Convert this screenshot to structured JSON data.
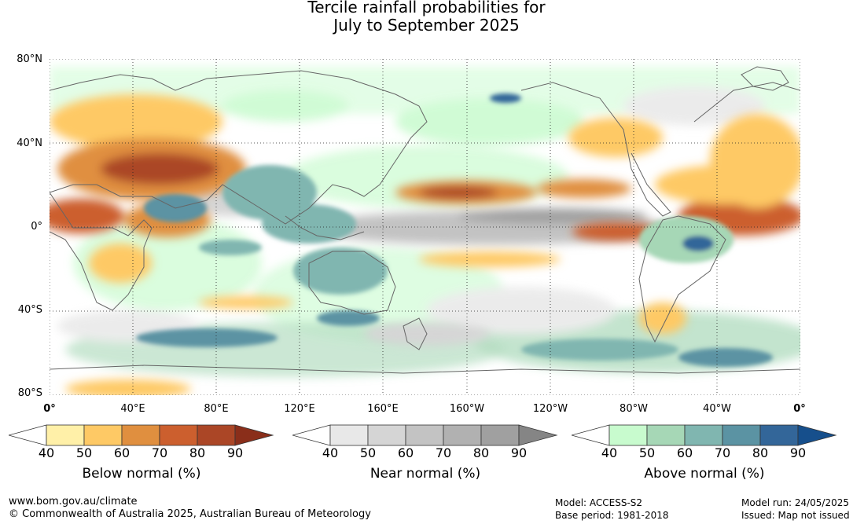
{
  "title_line1": "Tercile rainfall probabilities for",
  "title_line2": "July to September 2025",
  "lat_labels": [
    "80°N",
    "40°N",
    "0°",
    "40°S",
    "80°S"
  ],
  "lon_labels": [
    "0°",
    "40°E",
    "80°E",
    "120°E",
    "160°E",
    "160°W",
    "120°W",
    "80°W",
    "40°W",
    "0°"
  ],
  "colorbars": [
    {
      "label": "Below normal (%)",
      "ticks": [
        "40",
        "50",
        "60",
        "70",
        "80",
        "90"
      ],
      "colors": [
        "#fff0a8",
        "#fec965",
        "#e08f3f",
        "#cc5f2e",
        "#ab4626",
        "#8a2e1a"
      ]
    },
    {
      "label": "Near normal (%)",
      "ticks": [
        "40",
        "50",
        "60",
        "70",
        "80",
        "90"
      ],
      "colors": [
        "#e8e8e8",
        "#d5d5d5",
        "#c3c3c3",
        "#b1b1b1",
        "#a0a0a0",
        "#858585"
      ]
    },
    {
      "label": "Above normal (%)",
      "ticks": [
        "40",
        "50",
        "60",
        "70",
        "80",
        "90"
      ],
      "colors": [
        "#c8fbce",
        "#a6d7b6",
        "#80b6b0",
        "#5b93a3",
        "#336699",
        "#164f8c"
      ]
    }
  ],
  "footer": {
    "url": "www.bom.gov.au/climate",
    "copyright": "© Commonwealth of Australia 2025, Australian Bureau of Meteorology",
    "model": "Model: ACCESS-S2",
    "base_period": "Base period: 1981-2018",
    "model_run": "Model run: 24/05/2025",
    "issued": "Issued: Map not issued"
  }
}
